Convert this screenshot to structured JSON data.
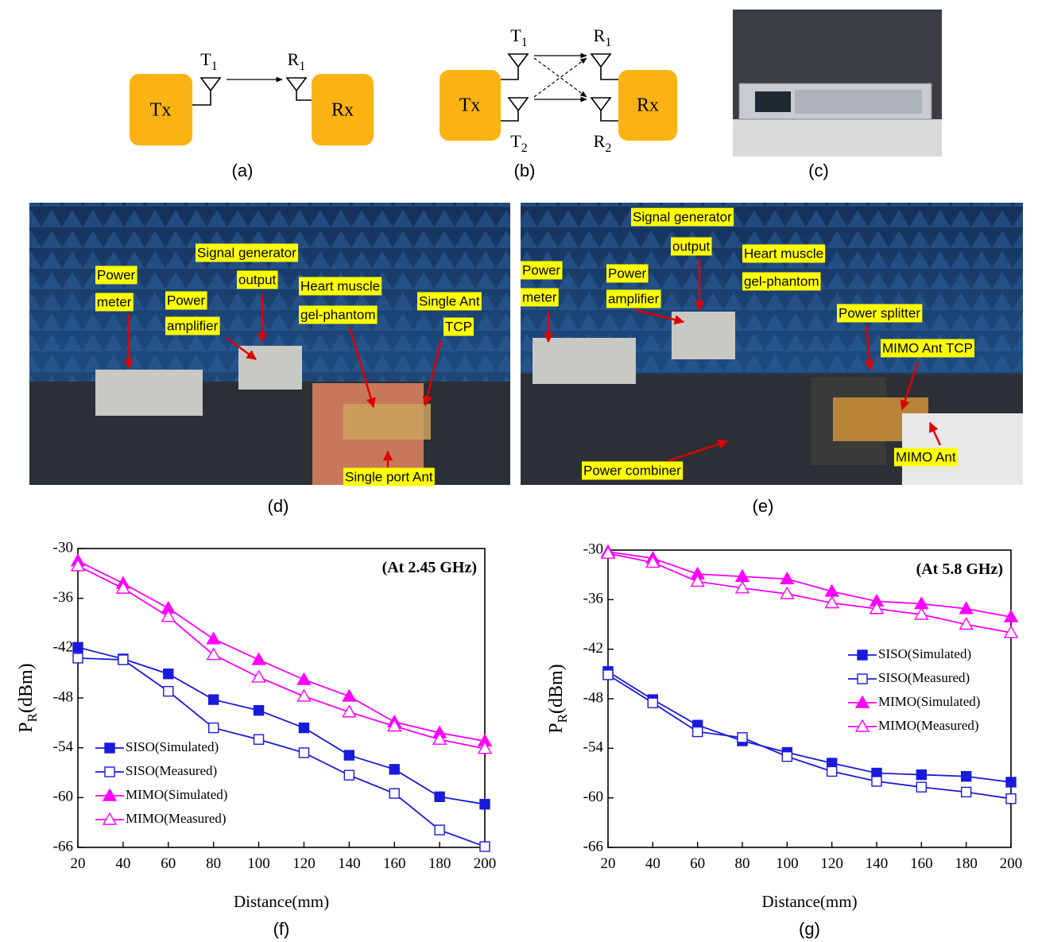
{
  "diagram_a": {
    "boxes": [
      "Tx",
      "Rx"
    ],
    "antennas": [
      {
        "label": "T",
        "sub": "1"
      },
      {
        "label": "R",
        "sub": "1"
      }
    ],
    "caption": "(a)"
  },
  "diagram_b": {
    "boxes": [
      "Tx",
      "Rx"
    ],
    "antennas": [
      {
        "label": "T",
        "sub": "1"
      },
      {
        "label": "T",
        "sub": "2"
      },
      {
        "label": "R",
        "sub": "1"
      },
      {
        "label": "R",
        "sub": "2"
      }
    ],
    "caption": "(b)"
  },
  "photo_c": {
    "caption": "(c)"
  },
  "photo_d": {
    "labels": [
      [
        "Power",
        "meter"
      ],
      [
        "Power",
        "amplifier"
      ],
      [
        "Signal generator",
        "output"
      ],
      [
        "Heart muscle",
        "gel-phantom"
      ],
      [
        "Single Ant",
        "TCP"
      ],
      [
        "Single port Ant"
      ]
    ],
    "caption": "(d)"
  },
  "photo_e": {
    "labels": [
      [
        "Power",
        "meter"
      ],
      [
        "Power",
        "amplifier"
      ],
      [
        "Signal generator",
        "output"
      ],
      [
        "Heart muscle",
        "gel-phantom"
      ],
      [
        "Power splitter"
      ],
      [
        "MIMO Ant TCP"
      ],
      [
        "Power combiner"
      ],
      [
        "MIMO Ant"
      ]
    ],
    "caption": "(e)"
  },
  "chart_data": [
    {
      "type": "line",
      "annotation": "(At 2.45 GHz)",
      "xlabel": "Distance(mm)",
      "ylabel": "P",
      "ylabel_sub": "R",
      "ylabel_unit": "(dBm)",
      "caption": "(f)",
      "x": [
        20,
        40,
        60,
        80,
        100,
        120,
        140,
        160,
        180,
        200
      ],
      "xlim": [
        20,
        200
      ],
      "xticks": [
        20,
        40,
        60,
        80,
        100,
        120,
        140,
        160,
        180,
        200
      ],
      "ylim": [
        -66,
        -30
      ],
      "yticks": [
        -66,
        -60,
        -54,
        -48,
        -42,
        -36,
        -30
      ],
      "legend": "lower left",
      "series": [
        {
          "name": "SISO(Simulated)",
          "color": "#1a1adb",
          "marker": "square",
          "filled": true,
          "values": [
            -41.9,
            -43.3,
            -45.1,
            -48.2,
            -49.5,
            -51.6,
            -54.9,
            -56.6,
            -59.9,
            -60.8
          ]
        },
        {
          "name": "SISO(Measured)",
          "color": "#1a1adb",
          "marker": "square",
          "filled": false,
          "values": [
            -43.2,
            -43.4,
            -47.2,
            -51.6,
            -53.0,
            -54.6,
            -57.3,
            -59.5,
            -63.9,
            -65.9
          ]
        },
        {
          "name": "MIMO(Simulated)",
          "color": "#ff00ff",
          "marker": "triangle",
          "filled": true,
          "values": [
            -31.5,
            -34.2,
            -37.2,
            -40.9,
            -43.4,
            -45.8,
            -47.8,
            -50.9,
            -52.2,
            -53.2
          ]
        },
        {
          "name": "MIMO(Measured)",
          "color": "#ff00ff",
          "marker": "triangle",
          "filled": false,
          "values": [
            -32.1,
            -34.8,
            -38.2,
            -42.8,
            -45.5,
            -47.8,
            -49.7,
            -51.4,
            -53.0,
            -54.1
          ]
        }
      ]
    },
    {
      "type": "line",
      "annotation": "(At 5.8 GHz)",
      "xlabel": "Distance(mm)",
      "ylabel": "P",
      "ylabel_sub": "R",
      "ylabel_unit": "(dBm)",
      "caption": "(g)",
      "x": [
        20,
        40,
        60,
        80,
        100,
        120,
        140,
        160,
        180,
        200
      ],
      "xlim": [
        20,
        200
      ],
      "xticks": [
        20,
        40,
        60,
        80,
        100,
        120,
        140,
        160,
        180,
        200
      ],
      "ylim": [
        -66,
        -30
      ],
      "yticks": [
        -66,
        -60,
        -54,
        -48,
        -42,
        -36,
        -30
      ],
      "legend": "center right",
      "series": [
        {
          "name": "SISO(Simulated)",
          "color": "#1a1adb",
          "marker": "square",
          "filled": true,
          "values": [
            -44.7,
            -48.1,
            -51.2,
            -53.1,
            -54.5,
            -55.8,
            -57.0,
            -57.2,
            -57.4,
            -58.1
          ]
        },
        {
          "name": "SISO(Measured)",
          "color": "#1a1adb",
          "marker": "square",
          "filled": false,
          "values": [
            -45.1,
            -48.5,
            -52.0,
            -52.7,
            -55.0,
            -56.8,
            -58.0,
            -58.7,
            -59.3,
            -60.1
          ]
        },
        {
          "name": "MIMO(Simulated)",
          "color": "#ff00ff",
          "marker": "triangle",
          "filled": true,
          "values": [
            -30.2,
            -31.0,
            -32.9,
            -33.2,
            -33.5,
            -35.0,
            -36.2,
            -36.5,
            -37.1,
            -38.1
          ]
        },
        {
          "name": "MIMO(Measured)",
          "color": "#ff00ff",
          "marker": "triangle",
          "filled": false,
          "values": [
            -30.4,
            -31.5,
            -33.8,
            -34.6,
            -35.3,
            -36.4,
            -37.1,
            -37.8,
            -39.0,
            -40.0
          ]
        }
      ]
    }
  ]
}
